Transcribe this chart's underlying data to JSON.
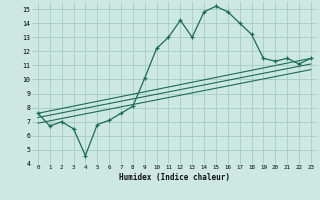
{
  "xlabel": "Humidex (Indice chaleur)",
  "bg_color": "#cce8e0",
  "grid_color": "#aad0c8",
  "line_color": "#1a6b5a",
  "xlim": [
    -0.5,
    23.5
  ],
  "ylim": [
    4,
    15.5
  ],
  "xticks": [
    0,
    1,
    2,
    3,
    4,
    5,
    6,
    7,
    8,
    9,
    10,
    11,
    12,
    13,
    14,
    15,
    16,
    17,
    18,
    19,
    20,
    21,
    22,
    23
  ],
  "yticks": [
    4,
    5,
    6,
    7,
    8,
    9,
    10,
    11,
    12,
    13,
    14,
    15
  ],
  "main_x": [
    0,
    1,
    2,
    3,
    4,
    5,
    6,
    7,
    8,
    9,
    10,
    11,
    12,
    13,
    14,
    15,
    16,
    17,
    18,
    19,
    20,
    21,
    22,
    23
  ],
  "main_y": [
    7.6,
    6.7,
    7.0,
    6.5,
    4.6,
    6.8,
    7.1,
    7.6,
    8.1,
    10.1,
    12.2,
    13.0,
    14.2,
    13.0,
    14.8,
    15.2,
    14.8,
    14.0,
    13.2,
    11.5,
    11.3,
    11.5,
    11.1,
    11.5
  ],
  "line1_x": [
    0,
    23
  ],
  "line1_y": [
    7.6,
    11.5
  ],
  "line2_x": [
    0,
    23
  ],
  "line2_y": [
    7.3,
    11.1
  ],
  "line3_x": [
    0,
    23
  ],
  "line3_y": [
    6.9,
    10.7
  ]
}
